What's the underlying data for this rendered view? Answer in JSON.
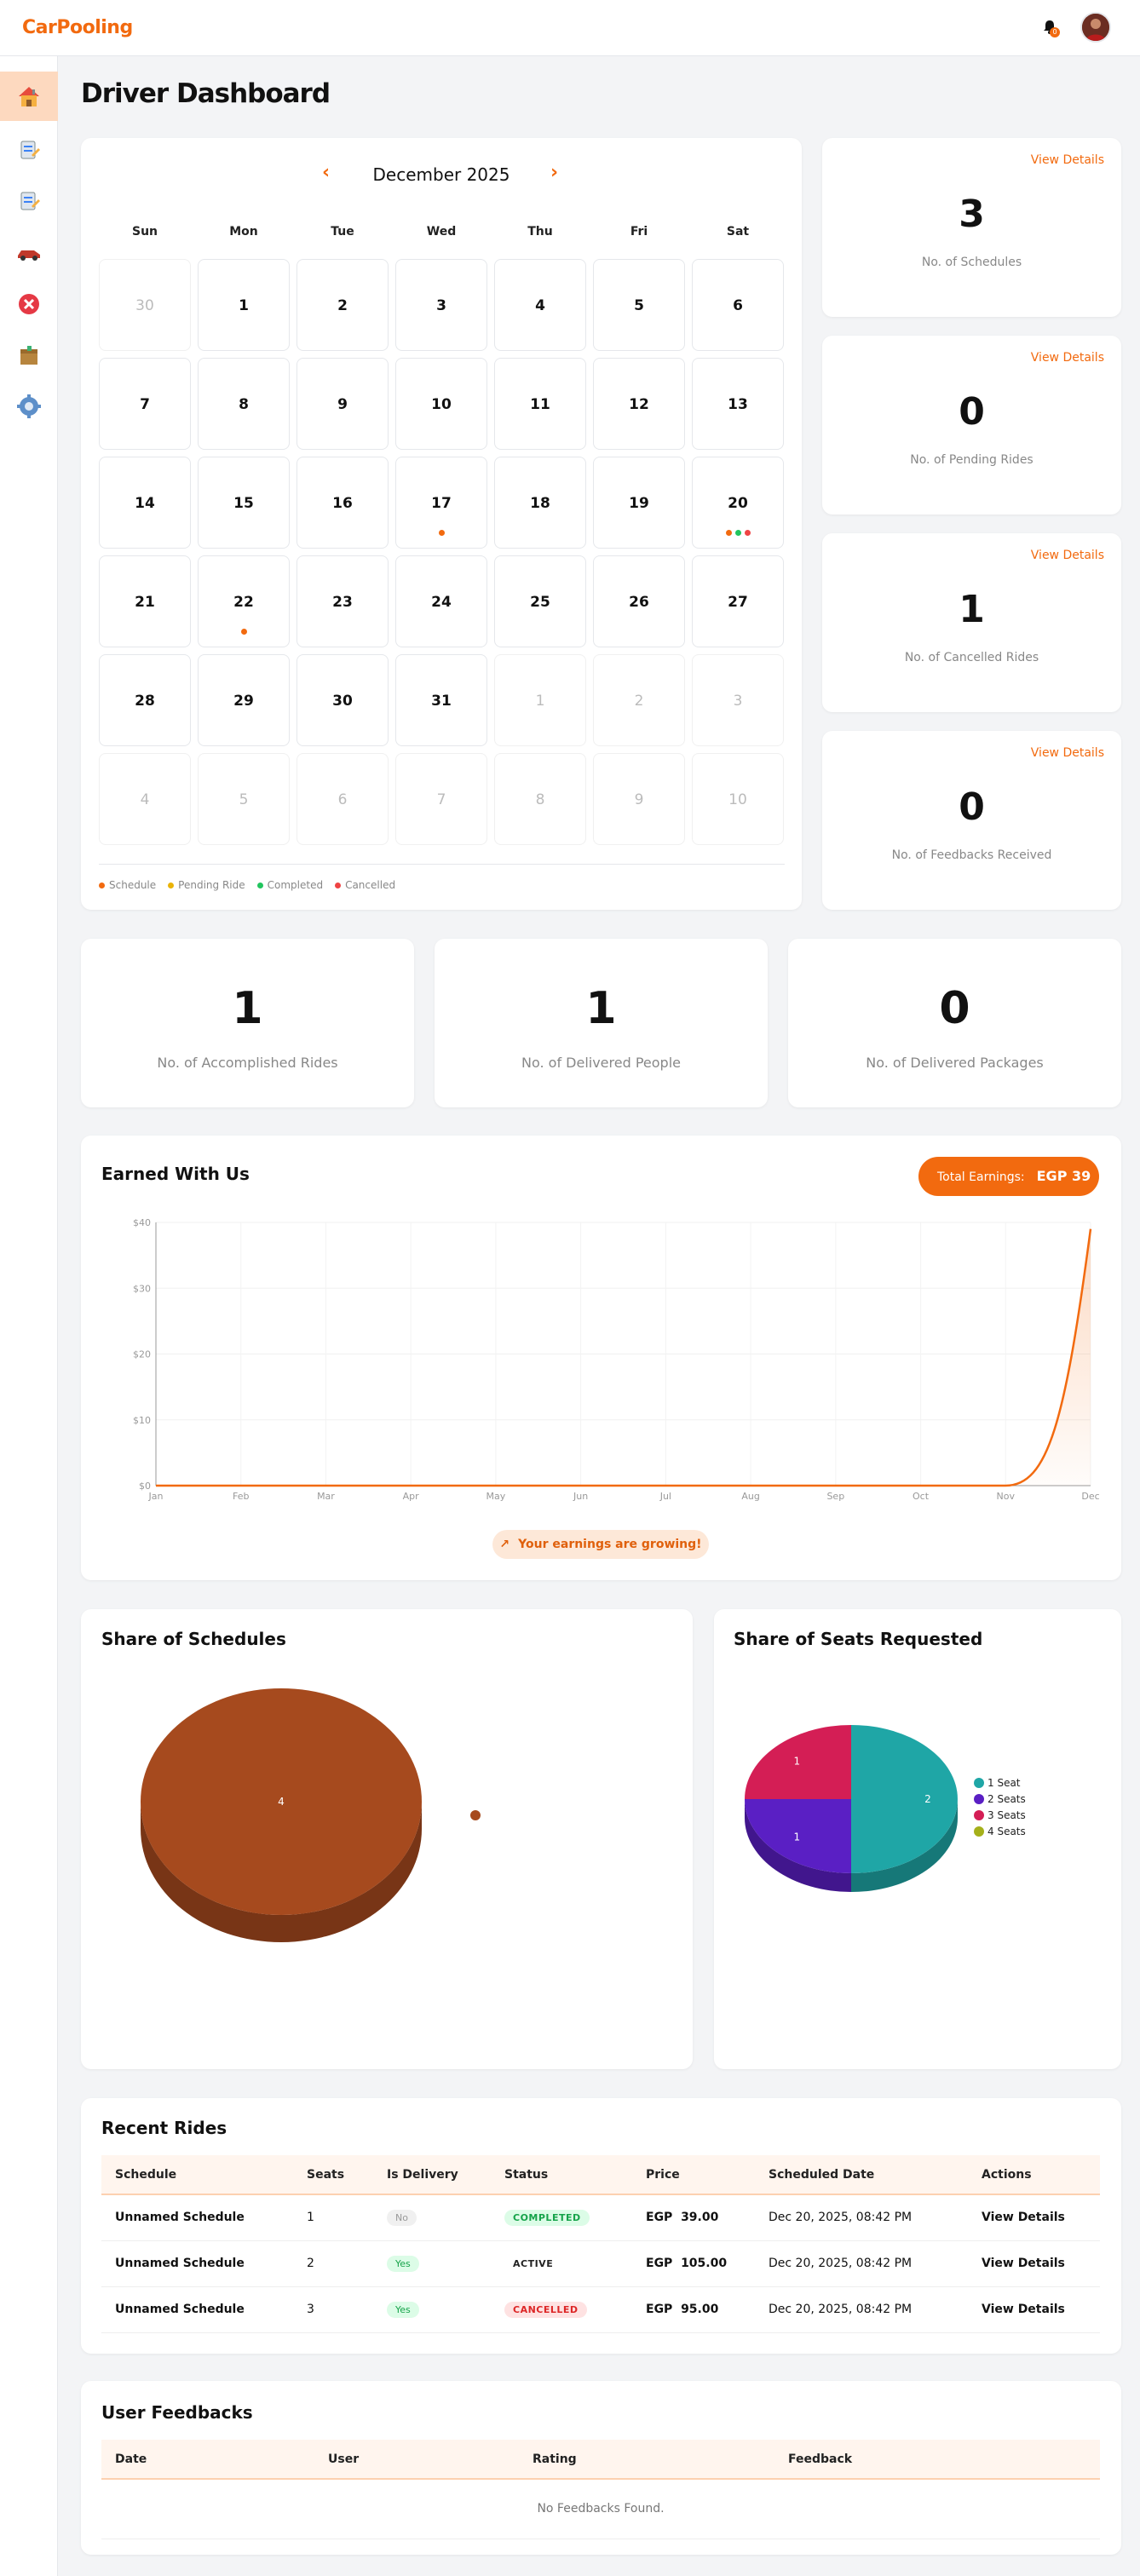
{
  "app": {
    "logo": "CarPooling",
    "notification_count": "0"
  },
  "page_title": "Driver Dashboard",
  "calendar": {
    "month_label": "December 2025",
    "prev": "‹",
    "next": "›",
    "weekdays": [
      "Sun",
      "Mon",
      "Tue",
      "Wed",
      "Thu",
      "Fri",
      "Sat"
    ],
    "days": [
      {
        "n": "30",
        "muted": true,
        "dots": []
      },
      {
        "n": "1",
        "dots": []
      },
      {
        "n": "2",
        "dots": []
      },
      {
        "n": "3",
        "dots": []
      },
      {
        "n": "4",
        "dots": []
      },
      {
        "n": "5",
        "dots": []
      },
      {
        "n": "6",
        "dots": []
      },
      {
        "n": "7",
        "dots": []
      },
      {
        "n": "8",
        "dots": []
      },
      {
        "n": "9",
        "dots": []
      },
      {
        "n": "10",
        "dots": []
      },
      {
        "n": "11",
        "dots": []
      },
      {
        "n": "12",
        "dots": []
      },
      {
        "n": "13",
        "dots": []
      },
      {
        "n": "14",
        "dots": []
      },
      {
        "n": "15",
        "dots": []
      },
      {
        "n": "16",
        "dots": []
      },
      {
        "n": "17",
        "dots": [
          "#f26a0f"
        ]
      },
      {
        "n": "18",
        "dots": []
      },
      {
        "n": "19",
        "dots": []
      },
      {
        "n": "20",
        "dots": [
          "#f26a0f",
          "#22c55e",
          "#ef4444"
        ]
      },
      {
        "n": "21",
        "dots": []
      },
      {
        "n": "22",
        "dots": [
          "#f26a0f"
        ]
      },
      {
        "n": "23",
        "dots": []
      },
      {
        "n": "24",
        "dots": []
      },
      {
        "n": "25",
        "dots": []
      },
      {
        "n": "26",
        "dots": []
      },
      {
        "n": "27",
        "dots": []
      },
      {
        "n": "28",
        "dots": []
      },
      {
        "n": "29",
        "dots": []
      },
      {
        "n": "30",
        "dots": []
      },
      {
        "n": "31",
        "dots": []
      },
      {
        "n": "1",
        "muted": true,
        "dots": []
      },
      {
        "n": "2",
        "muted": true,
        "dots": []
      },
      {
        "n": "3",
        "muted": true,
        "dots": []
      },
      {
        "n": "4",
        "muted": true,
        "dots": []
      },
      {
        "n": "5",
        "muted": true,
        "dots": []
      },
      {
        "n": "6",
        "muted": true,
        "dots": []
      },
      {
        "n": "7",
        "muted": true,
        "dots": []
      },
      {
        "n": "8",
        "muted": true,
        "dots": []
      },
      {
        "n": "9",
        "muted": true,
        "dots": []
      },
      {
        "n": "10",
        "muted": true,
        "dots": []
      }
    ],
    "legend": [
      {
        "label": "Schedule",
        "color": "#f26a0f"
      },
      {
        "label": "Pending Ride",
        "color": "#eab308"
      },
      {
        "label": "Completed",
        "color": "#22c55e"
      },
      {
        "label": "Cancelled",
        "color": "#ef4444"
      }
    ]
  },
  "stats_right": [
    {
      "value": "3",
      "caption": "No. of Schedules",
      "link": "View Details"
    },
    {
      "value": "0",
      "caption": "No. of Pending Rides",
      "link": "View Details"
    },
    {
      "value": "1",
      "caption": "No. of Cancelled Rides",
      "link": "View Details"
    },
    {
      "value": "0",
      "caption": "No. of Feedbacks Received",
      "link": "View Details"
    }
  ],
  "stats_row": [
    {
      "value": "1",
      "caption": "No. of Accomplished Rides"
    },
    {
      "value": "1",
      "caption": "No. of Delivered People"
    },
    {
      "value": "0",
      "caption": "No. of Delivered Packages"
    }
  ],
  "earnings": {
    "title": "Earned With Us",
    "total_label": "Total Earnings:",
    "total_value": "EGP 39",
    "growing_label": "Your earnings are growing!",
    "growing_icon": "arrow-up-right-icon"
  },
  "chart_data": [
    {
      "type": "area",
      "title": "Earned With Us",
      "categories": [
        "Jan",
        "Feb",
        "Mar",
        "Apr",
        "May",
        "Jun",
        "Jul",
        "Aug",
        "Sep",
        "Oct",
        "Nov",
        "Dec"
      ],
      "values": [
        0,
        0,
        0,
        0,
        0,
        0,
        0,
        0,
        0,
        0,
        0,
        39
      ],
      "ylim": [
        0,
        40
      ],
      "yticks": [
        "$0",
        "$10",
        "$20",
        "$30",
        "$40"
      ],
      "ytick_values": [
        0,
        10,
        20,
        30,
        40
      ],
      "color": "#f26a0f",
      "grid": true
    },
    {
      "type": "pie",
      "title": "Share of Schedules",
      "slices": [
        {
          "label": "",
          "value": 4,
          "color": "#a64a1e"
        }
      ],
      "legend": [
        {
          "label": "",
          "color": "#a64a1e"
        }
      ]
    },
    {
      "type": "pie",
      "title": "Share of Seats Requested",
      "slices": [
        {
          "label": "1 Seat",
          "value": 2,
          "color": "#1fa6a6"
        },
        {
          "label": "2 Seats",
          "value": 1,
          "color": "#5a1fc4"
        },
        {
          "label": "3 Seats",
          "value": 1,
          "color": "#d41e55"
        },
        {
          "label": "4 Seats",
          "value": 0,
          "color": "#a5b01a"
        }
      ],
      "legend": [
        {
          "label": "1 Seat",
          "color": "#1fa6a6"
        },
        {
          "label": "2 Seats",
          "color": "#5a1fc4"
        },
        {
          "label": "3 Seats",
          "color": "#d41e55"
        },
        {
          "label": "4 Seats",
          "color": "#a5b01a"
        }
      ]
    }
  ],
  "schedules_share": {
    "title": "Share of Schedules"
  },
  "seats_share": {
    "title": "Share of Seats Requested"
  },
  "recent_rides": {
    "title": "Recent Rides",
    "columns": [
      "Schedule",
      "Seats",
      "Is Delivery",
      "Status",
      "Price",
      "Scheduled Date",
      "Actions"
    ],
    "rows": [
      {
        "schedule": "Unnamed Schedule",
        "seats": "1",
        "delivery": "No",
        "status": "COMPLETED",
        "price": "EGP  39.00",
        "date": "Dec 20, 2025, 08:42 PM",
        "action": "View Details"
      },
      {
        "schedule": "Unnamed Schedule",
        "seats": "2",
        "delivery": "Yes",
        "status": "ACTIVE",
        "price": "EGP  105.00",
        "date": "Dec 20, 2025, 08:42 PM",
        "action": "View Details"
      },
      {
        "schedule": "Unnamed Schedule",
        "seats": "3",
        "delivery": "Yes",
        "status": "CANCELLED",
        "price": "EGP  95.00",
        "date": "Dec 20, 2025, 08:42 PM",
        "action": "View Details"
      }
    ]
  },
  "feedbacks": {
    "title": "User Feedbacks",
    "columns": [
      "Date",
      "User",
      "Rating",
      "Feedback"
    ],
    "empty": "No Feedbacks Found."
  },
  "sidebar": {
    "items": [
      {
        "icon": "home-icon",
        "active": true
      },
      {
        "icon": "schedule-list-icon"
      },
      {
        "icon": "schedule-edit-icon"
      },
      {
        "icon": "car-icon"
      },
      {
        "icon": "cancel-icon"
      },
      {
        "icon": "package-icon"
      },
      {
        "icon": "settings-icon"
      }
    ]
  }
}
